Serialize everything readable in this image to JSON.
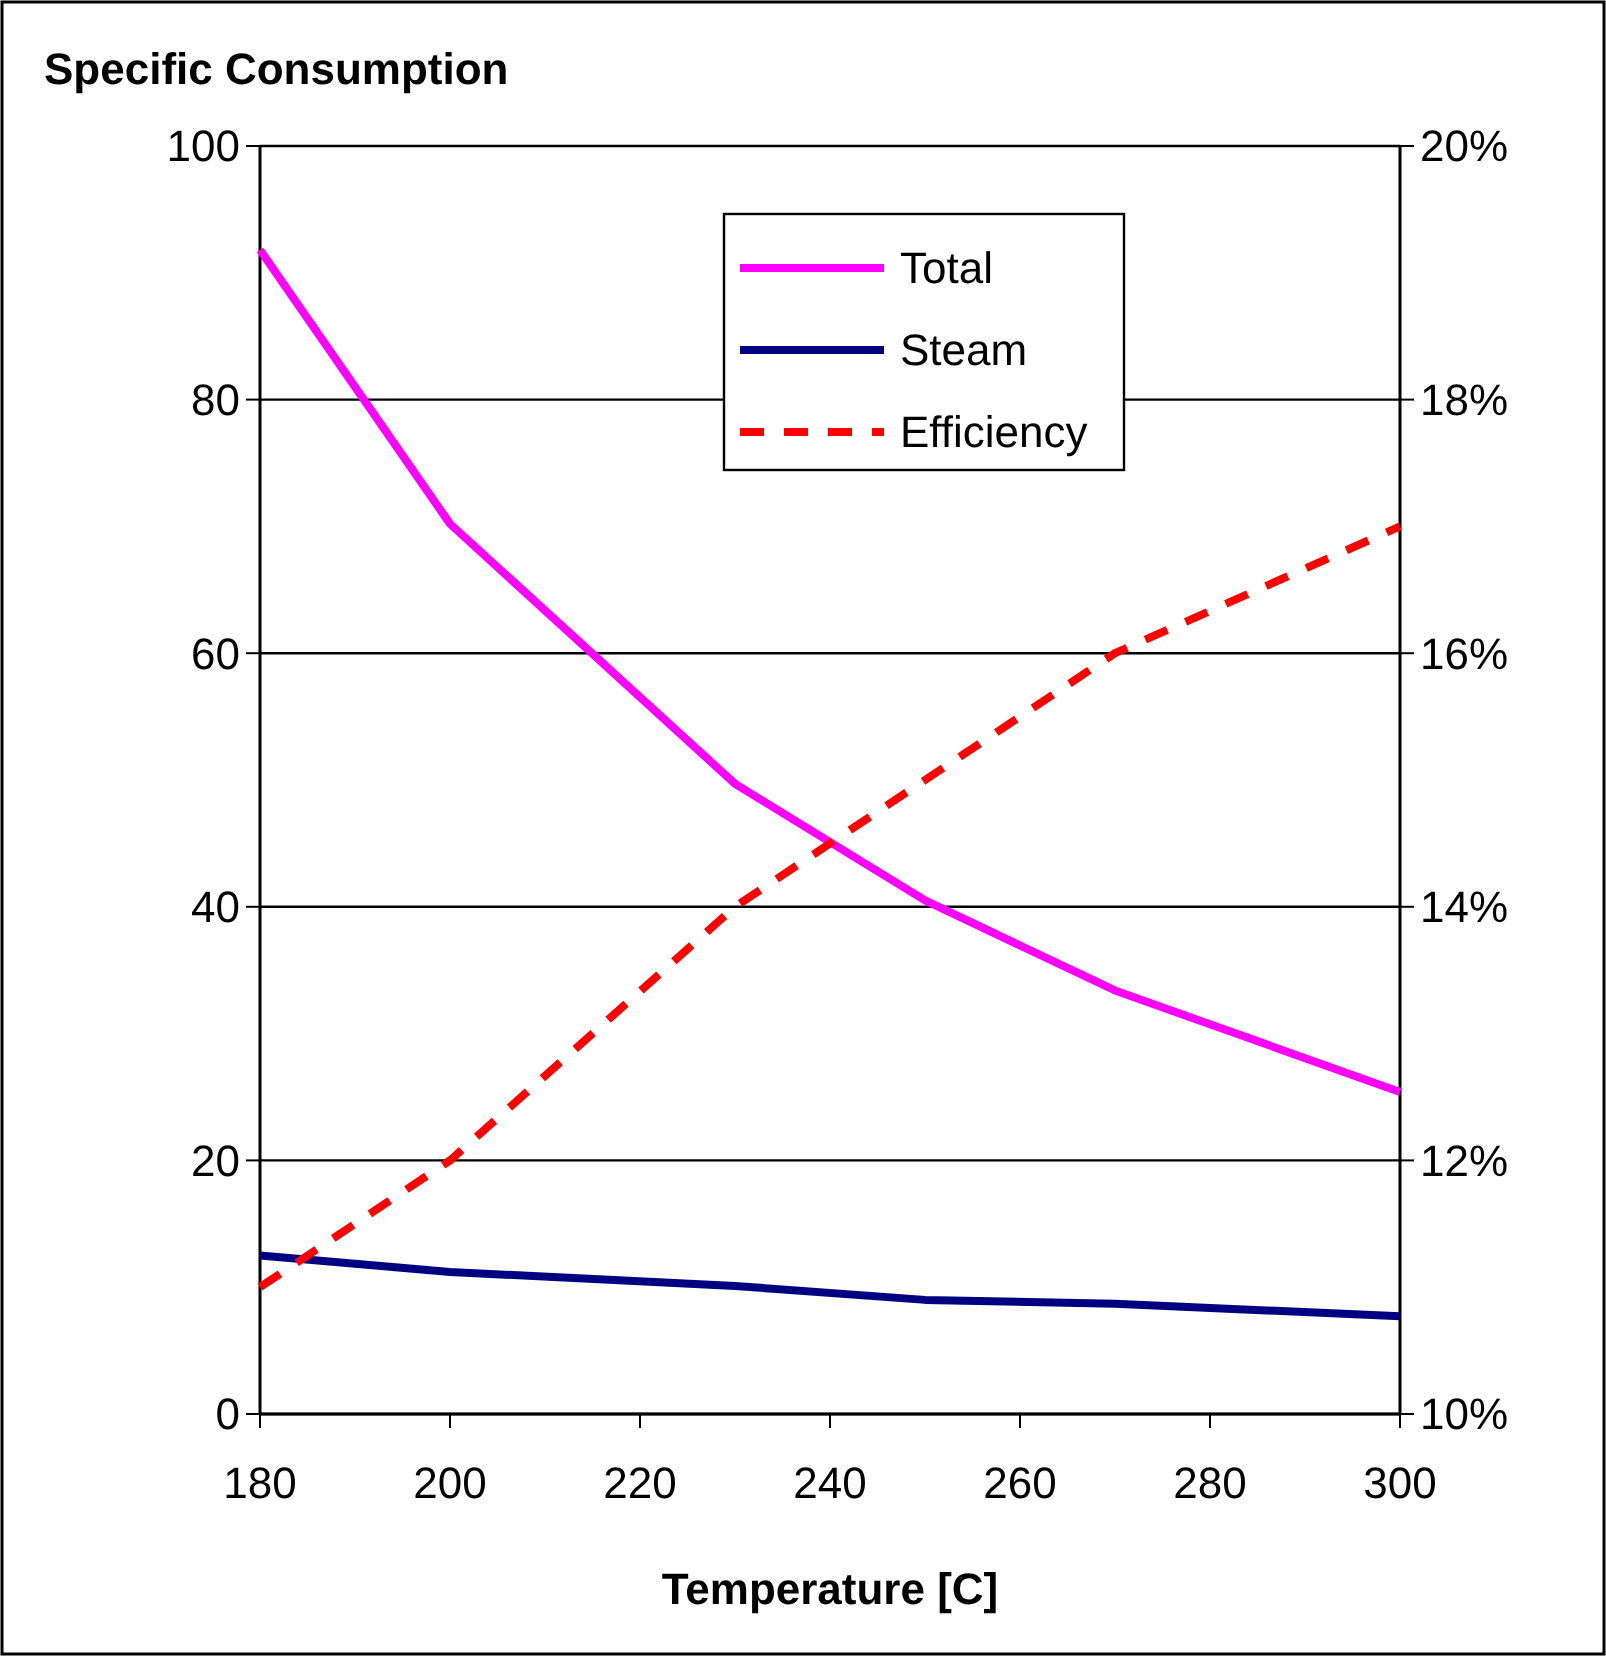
{
  "chart_data": {
    "type": "line",
    "ylabel": "Specific Consumption",
    "xlabel": "Temperature [C]",
    "x": [
      180,
      200,
      230,
      250,
      270,
      300
    ],
    "series": [
      {
        "name": "Total",
        "color": "#ff00ff",
        "values": [
          91.8,
          70.2,
          49.7,
          40.5,
          33.4,
          25.4
        ]
      },
      {
        "name": "Steam",
        "color": "#000080",
        "values": [
          12.5,
          11.2,
          10.1,
          9,
          8.7,
          7.7
        ]
      },
      {
        "name": "Efficiency",
        "color": "#ff0000",
        "values": [
          11,
          12,
          14,
          15,
          16,
          17
        ],
        "axis": "y2",
        "line_style": "dashed"
      }
    ],
    "xlim": [
      180,
      300
    ],
    "xticks": [
      180,
      200,
      220,
      240,
      260,
      280,
      300
    ],
    "ylim": [
      0,
      100
    ],
    "yticks": [
      0,
      20,
      40,
      60,
      80,
      100
    ],
    "y2lim": [
      10,
      20
    ],
    "y2ticks": [
      {
        "value": 10,
        "label": "10%"
      },
      {
        "value": 12,
        "label": "12%"
      },
      {
        "value": 14,
        "label": "14%"
      },
      {
        "value": 16,
        "label": "16%"
      },
      {
        "value": 18,
        "label": "18%"
      },
      {
        "value": 20,
        "label": "20%"
      }
    ],
    "grid": "y",
    "legend": "top",
    "marker": "none",
    "line_style": "solid"
  }
}
